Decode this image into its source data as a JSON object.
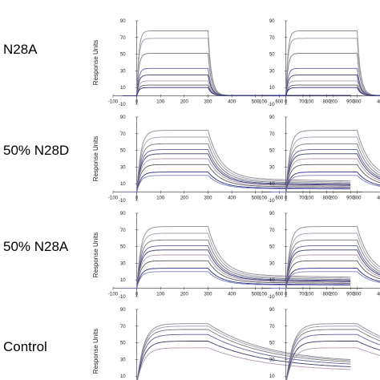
{
  "chart_data": {
    "type": "line",
    "xticks": [
      -100,
      0,
      100,
      200,
      300,
      400,
      500,
      600,
      700,
      800,
      900
    ],
    "yticks": [
      -10,
      10,
      30,
      50,
      70,
      90
    ],
    "xlim": [
      -100,
      950
    ],
    "ylim": [
      -10,
      90
    ],
    "ylabel": "Response Units",
    "rows": [
      {
        "label": "",
        "shape": "none"
      },
      {
        "label": "N28A",
        "shape": "fast"
      },
      {
        "label": "50% N28D",
        "shape": "slow"
      },
      {
        "label": "50% N28A",
        "shape": "slow"
      },
      {
        "label": "Control",
        "shape": "vslow"
      }
    ],
    "panels_per_row": 2,
    "series_plateaus": {
      "fast": [
        78,
        69,
        51,
        33,
        25,
        18,
        13,
        10
      ],
      "slow": [
        74,
        66,
        58,
        51,
        46,
        40,
        33,
        24,
        20
      ],
      "vslow": [
        73,
        70,
        66,
        60,
        52,
        44
      ]
    },
    "series_colors": [
      "#8a8a8a",
      "#9c9cb0",
      "#7a7a7a",
      "#6060a0",
      "#3a3a6a",
      "#b098b0",
      "#5a5a5a",
      "#2a2a8a",
      "#8080c0"
    ]
  }
}
